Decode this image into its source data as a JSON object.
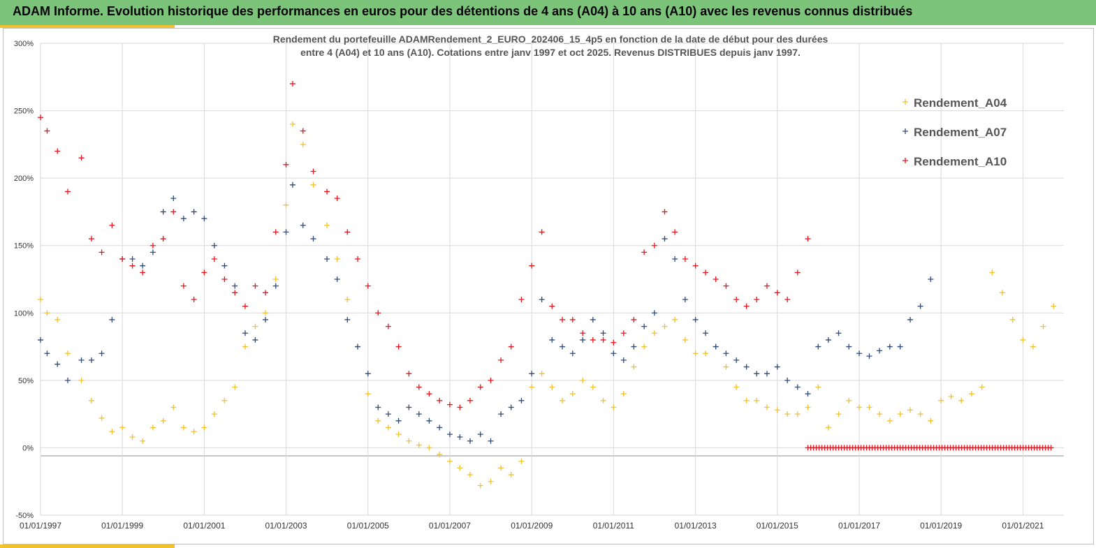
{
  "banner": {
    "title": "ADAM Informe. Evolution historique des performances en euros pour des détentions de 4 ans (A04) à 10 ans (A10) avec les revenus connus distribués"
  },
  "colors": {
    "banner_bg": "#7cc47a",
    "accent": "#f2c12e",
    "A04": "#f2c12e",
    "A07": "#2f4a78",
    "A10": "#e8141c"
  },
  "chart_data": {
    "type": "scatter",
    "marker": "plus",
    "title_lines": [
      "Rendement du portefeuille ADAMRendement_2_EURO_202406_15_4p5  en fonction de la date de début pour des durées",
      "entre 4 (A04) et 10 ans (A10). Cotations entre janv 1997 et oct 2025. Revenus DISTRIBUES depuis janv 1997."
    ],
    "xlabel": "",
    "ylabel": "",
    "xlim": [
      "1997-01-01",
      "2021-10-01"
    ],
    "ylim": [
      -0.5,
      3.0
    ],
    "grid": true,
    "legend_position": "top-right",
    "x_tick_labels": [
      "01/01/1997",
      "01/01/1999",
      "01/01/2001",
      "01/01/2003",
      "01/01/2005",
      "01/01/2007",
      "01/01/2009",
      "01/01/2011",
      "01/01/2013",
      "01/01/2015",
      "01/01/2017",
      "01/01/2019",
      "01/01/2021"
    ],
    "y_tick_labels": [
      "300%",
      "250%",
      "200%",
      "150%",
      "100%",
      "50%",
      "0%",
      "-50%"
    ],
    "series": [
      {
        "name": "Rendement_A04",
        "x": [
          "1997-01-01",
          "1997-03-01",
          "1997-06-01",
          "1997-09-01",
          "1998-01-01",
          "1998-04-01",
          "1998-07-01",
          "1998-10-01",
          "1999-01-01",
          "1999-04-01",
          "1999-07-01",
          "1999-10-01",
          "2000-01-01",
          "2000-04-01",
          "2000-07-01",
          "2000-10-01",
          "2001-01-01",
          "2001-04-01",
          "2001-07-01",
          "2001-10-01",
          "2002-01-01",
          "2002-04-01",
          "2002-07-01",
          "2002-10-01",
          "2003-01-01",
          "2003-03-01",
          "2003-06-01",
          "2003-09-01",
          "2004-01-01",
          "2004-04-01",
          "2004-07-01",
          "2004-10-01",
          "2005-01-01",
          "2005-04-01",
          "2005-07-01",
          "2005-10-01",
          "2006-01-01",
          "2006-04-01",
          "2006-07-01",
          "2006-10-01",
          "2007-01-01",
          "2007-04-01",
          "2007-07-01",
          "2007-10-01",
          "2008-01-01",
          "2008-04-01",
          "2008-07-01",
          "2008-10-01",
          "2009-01-01",
          "2009-04-01",
          "2009-07-01",
          "2009-10-01",
          "2010-01-01",
          "2010-04-01",
          "2010-07-01",
          "2010-10-01",
          "2011-01-01",
          "2011-04-01",
          "2011-07-01",
          "2011-10-01",
          "2012-01-01",
          "2012-04-01",
          "2012-07-01",
          "2012-10-01",
          "2013-01-01",
          "2013-04-01",
          "2013-07-01",
          "2013-10-01",
          "2014-01-01",
          "2014-04-01",
          "2014-07-01",
          "2014-10-01",
          "2015-01-01",
          "2015-04-01",
          "2015-07-01",
          "2015-10-01",
          "2016-01-01",
          "2016-04-01",
          "2016-07-01",
          "2016-10-01",
          "2017-01-01",
          "2017-04-01",
          "2017-07-01",
          "2017-10-01",
          "2018-01-01",
          "2018-04-01",
          "2018-07-01",
          "2018-10-01",
          "2019-01-01",
          "2019-04-01",
          "2019-07-01",
          "2019-10-01",
          "2020-01-01",
          "2020-04-01",
          "2020-07-01",
          "2020-10-01",
          "2021-01-01",
          "2021-04-01",
          "2021-07-01",
          "2021-10-01"
        ],
        "y": [
          1.1,
          1.0,
          0.95,
          0.7,
          0.5,
          0.35,
          0.22,
          0.12,
          0.15,
          0.08,
          0.05,
          0.15,
          0.2,
          0.3,
          0.15,
          0.12,
          0.15,
          0.25,
          0.35,
          0.45,
          0.75,
          0.9,
          1.0,
          1.25,
          1.8,
          2.4,
          2.25,
          1.95,
          1.65,
          1.4,
          1.1,
          0.75,
          0.4,
          0.2,
          0.15,
          0.1,
          0.05,
          0.02,
          0.0,
          -0.05,
          -0.1,
          -0.15,
          -0.2,
          -0.28,
          -0.25,
          -0.15,
          -0.2,
          -0.1,
          0.45,
          0.55,
          0.45,
          0.35,
          0.4,
          0.5,
          0.45,
          0.35,
          0.3,
          0.4,
          0.6,
          0.75,
          0.85,
          0.9,
          0.95,
          0.8,
          0.7,
          0.7,
          0.75,
          0.6,
          0.45,
          0.35,
          0.35,
          0.3,
          0.28,
          0.25,
          0.25,
          0.3,
          0.45,
          0.15,
          0.25,
          0.35,
          0.3,
          0.3,
          0.25,
          0.2,
          0.25,
          0.28,
          0.25,
          0.2,
          0.35,
          0.38,
          0.35,
          0.4,
          0.45,
          1.3,
          1.15,
          0.95,
          0.8,
          0.75,
          0.9,
          1.05
        ]
      },
      {
        "name": "Rendement_A07",
        "x": [
          "1997-01-01",
          "1997-03-01",
          "1997-06-01",
          "1997-09-01",
          "1998-01-01",
          "1998-04-01",
          "1998-07-01",
          "1998-10-01",
          "1999-01-01",
          "1999-04-01",
          "1999-07-01",
          "1999-10-01",
          "2000-01-01",
          "2000-04-01",
          "2000-07-01",
          "2000-10-01",
          "2001-01-01",
          "2001-04-01",
          "2001-07-01",
          "2001-10-01",
          "2002-01-01",
          "2002-04-01",
          "2002-07-01",
          "2002-10-01",
          "2003-01-01",
          "2003-03-01",
          "2003-06-01",
          "2003-09-01",
          "2004-01-01",
          "2004-04-01",
          "2004-07-01",
          "2004-10-01",
          "2005-01-01",
          "2005-04-01",
          "2005-07-01",
          "2005-10-01",
          "2006-01-01",
          "2006-04-01",
          "2006-07-01",
          "2006-10-01",
          "2007-01-01",
          "2007-04-01",
          "2007-07-01",
          "2007-10-01",
          "2008-01-01",
          "2008-04-01",
          "2008-07-01",
          "2008-10-01",
          "2009-01-01",
          "2009-04-01",
          "2009-07-01",
          "2009-10-01",
          "2010-01-01",
          "2010-04-01",
          "2010-07-01",
          "2010-10-01",
          "2011-01-01",
          "2011-04-01",
          "2011-07-01",
          "2011-10-01",
          "2012-01-01",
          "2012-04-01",
          "2012-07-01",
          "2012-10-01",
          "2013-01-01",
          "2013-04-01",
          "2013-07-01",
          "2013-10-01",
          "2014-01-01",
          "2014-04-01",
          "2014-07-01",
          "2014-10-01",
          "2015-01-01",
          "2015-04-01",
          "2015-07-01",
          "2015-10-01",
          "2016-01-01",
          "2016-04-01",
          "2016-07-01",
          "2016-10-01",
          "2017-01-01",
          "2017-04-01",
          "2017-07-01",
          "2017-10-01",
          "2018-01-01",
          "2018-04-01",
          "2018-07-01",
          "2018-10-01"
        ],
        "y": [
          0.8,
          0.7,
          0.62,
          0.5,
          0.65,
          0.65,
          0.7,
          0.95,
          1.4,
          1.4,
          1.35,
          1.45,
          1.75,
          1.85,
          1.7,
          1.75,
          1.7,
          1.5,
          1.35,
          1.2,
          0.85,
          0.8,
          0.95,
          1.2,
          1.6,
          1.95,
          1.65,
          1.55,
          1.4,
          1.25,
          0.95,
          0.75,
          0.55,
          0.3,
          0.25,
          0.2,
          0.3,
          0.25,
          0.2,
          0.15,
          0.1,
          0.08,
          0.05,
          0.1,
          0.05,
          0.25,
          0.3,
          0.35,
          0.55,
          1.1,
          0.8,
          0.75,
          0.7,
          0.8,
          0.95,
          0.85,
          0.7,
          0.65,
          0.75,
          0.9,
          1.0,
          1.55,
          1.4,
          1.1,
          0.95,
          0.85,
          0.75,
          0.7,
          0.65,
          0.6,
          0.55,
          0.55,
          0.6,
          0.5,
          0.45,
          0.4,
          0.75,
          0.8,
          0.85,
          0.75,
          0.7,
          0.68,
          0.72,
          0.75,
          0.75,
          0.95,
          1.05,
          1.25
        ]
      },
      {
        "name": "Rendement_A10",
        "x": [
          "1997-01-01",
          "1997-03-01",
          "1997-06-01",
          "1997-09-01",
          "1998-01-01",
          "1998-04-01",
          "1998-07-01",
          "1998-10-01",
          "1999-01-01",
          "1999-04-01",
          "1999-07-01",
          "1999-10-01",
          "2000-01-01",
          "2000-04-01",
          "2000-07-01",
          "2000-10-01",
          "2001-01-01",
          "2001-04-01",
          "2001-07-01",
          "2001-10-01",
          "2002-01-01",
          "2002-04-01",
          "2002-07-01",
          "2002-10-01",
          "2003-01-01",
          "2003-03-01",
          "2003-06-01",
          "2003-09-01",
          "2004-01-01",
          "2004-04-01",
          "2004-07-01",
          "2004-10-01",
          "2005-01-01",
          "2005-04-01",
          "2005-07-01",
          "2005-10-01",
          "2006-01-01",
          "2006-04-01",
          "2006-07-01",
          "2006-10-01",
          "2007-01-01",
          "2007-04-01",
          "2007-07-01",
          "2007-10-01",
          "2008-01-01",
          "2008-04-01",
          "2008-07-01",
          "2008-10-01",
          "2009-01-01",
          "2009-04-01",
          "2009-07-01",
          "2009-10-01",
          "2010-01-01",
          "2010-04-01",
          "2010-07-01",
          "2010-10-01",
          "2011-01-01",
          "2011-04-01",
          "2011-07-01",
          "2011-10-01",
          "2012-01-01",
          "2012-04-01",
          "2012-07-01",
          "2012-10-01",
          "2013-01-01",
          "2013-04-01",
          "2013-07-01",
          "2013-10-01",
          "2014-01-01",
          "2014-04-01",
          "2014-07-01",
          "2014-10-01",
          "2015-01-01",
          "2015-04-01",
          "2015-07-01",
          "2015-10-01"
        ],
        "y": [
          2.45,
          2.35,
          2.2,
          1.9,
          2.15,
          1.55,
          1.45,
          1.65,
          1.4,
          1.35,
          1.3,
          1.5,
          1.55,
          1.75,
          1.2,
          1.1,
          1.3,
          1.4,
          1.25,
          1.15,
          1.05,
          1.2,
          1.15,
          1.6,
          2.1,
          2.7,
          2.35,
          2.05,
          1.9,
          1.85,
          1.6,
          1.4,
          1.2,
          1.0,
          0.9,
          0.75,
          0.55,
          0.45,
          0.4,
          0.35,
          0.32,
          0.3,
          0.35,
          0.45,
          0.5,
          0.65,
          0.75,
          1.1,
          1.35,
          1.6,
          1.05,
          0.95,
          0.95,
          0.85,
          0.8,
          0.8,
          0.78,
          0.85,
          0.95,
          1.45,
          1.5,
          1.75,
          1.6,
          1.4,
          1.35,
          1.3,
          1.25,
          1.2,
          1.1,
          1.05,
          1.1,
          1.2,
          1.15,
          1.1,
          1.3,
          1.55
        ]
      },
      {
        "name": "Rendement_A10",
        "x_range": [
          "2015-10-01",
          "2021-10-01"
        ],
        "y_constant": 0.0
      }
    ]
  }
}
